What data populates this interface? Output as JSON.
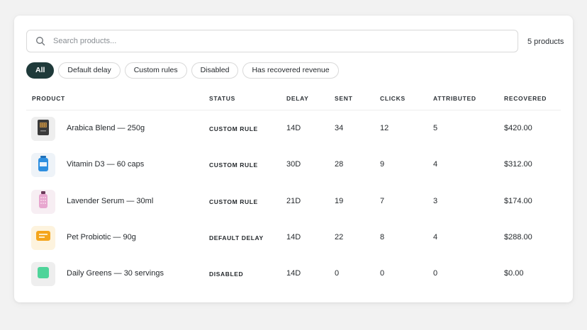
{
  "search": {
    "placeholder": "Search products...",
    "value": ""
  },
  "product_count": "5 products",
  "filters": [
    {
      "label": "All",
      "active": true
    },
    {
      "label": "Default delay",
      "active": false
    },
    {
      "label": "Custom rules",
      "active": false
    },
    {
      "label": "Disabled",
      "active": false
    },
    {
      "label": "Has recovered revenue",
      "active": false
    }
  ],
  "table": {
    "columns": [
      "PRODUCT",
      "STATUS",
      "DELAY",
      "SENT",
      "CLICKS",
      "ATTRIBUTED",
      "RECOVERED"
    ],
    "rows": [
      {
        "icon": "coffee-bag-icon",
        "thumb_bg": "#eeeeee",
        "product": "Arabica Blend — 250g",
        "status": "CUSTOM RULE",
        "delay": "14D",
        "sent": "34",
        "clicks": "12",
        "attributed": "5",
        "recovered": "$420.00"
      },
      {
        "icon": "vitamin-bottle-icon",
        "thumb_bg": "#eef3f8",
        "product": "Vitamin D3 — 60 caps",
        "status": "CUSTOM RULE",
        "delay": "30D",
        "sent": "28",
        "clicks": "9",
        "attributed": "4",
        "recovered": "$312.00"
      },
      {
        "icon": "serum-bottle-icon",
        "thumb_bg": "#f7eef3",
        "product": "Lavender Serum — 30ml",
        "status": "CUSTOM RULE",
        "delay": "21D",
        "sent": "19",
        "clicks": "7",
        "attributed": "3",
        "recovered": "$174.00"
      },
      {
        "icon": "probiotic-pack-icon",
        "thumb_bg": "#fdf3de",
        "product": "Pet Probiotic — 90g",
        "status": "DEFAULT DELAY",
        "delay": "14D",
        "sent": "22",
        "clicks": "8",
        "attributed": "4",
        "recovered": "$288.00"
      },
      {
        "icon": "greens-pouch-icon",
        "thumb_bg": "#eeeeee",
        "product": "Daily Greens — 30 servings",
        "status": "DISABLED",
        "delay": "14D",
        "sent": "0",
        "clicks": "0",
        "attributed": "0",
        "recovered": "$0.00"
      }
    ]
  },
  "colors": {
    "active_chip": "#1f3a3a",
    "page_bg": "#f2f2f2",
    "card_bg": "#ffffff"
  }
}
